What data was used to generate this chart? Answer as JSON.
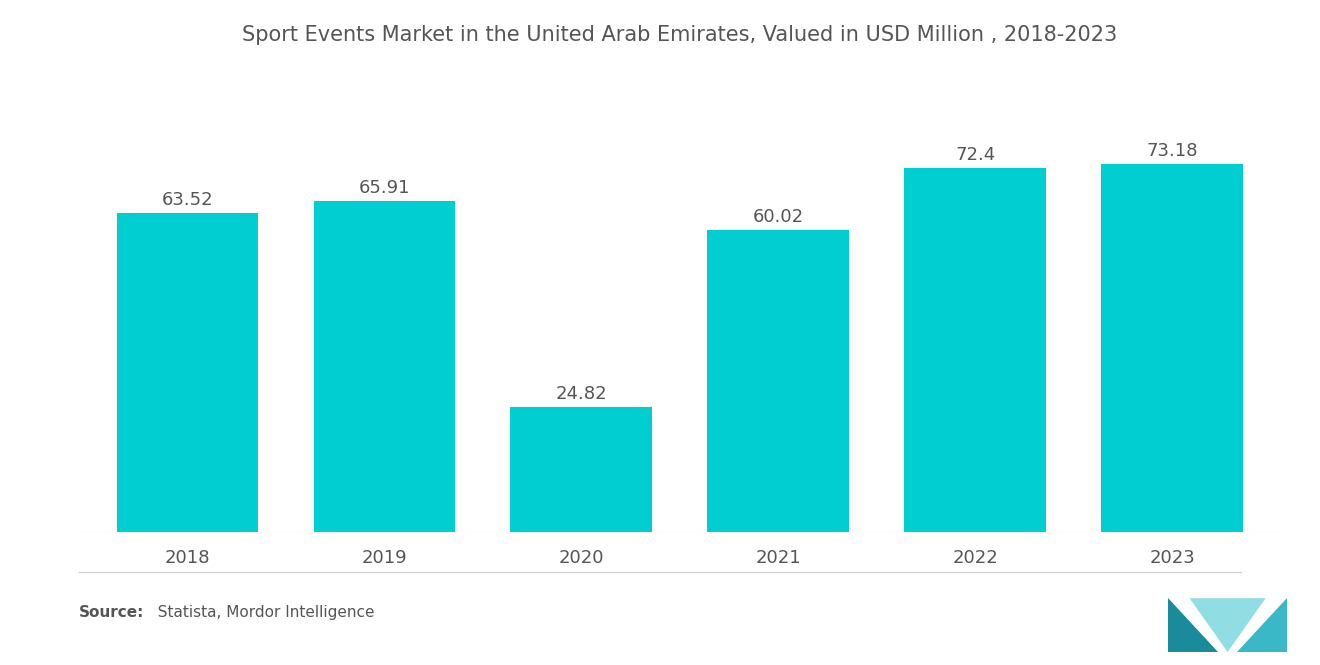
{
  "title": "Sport Events Market in the United Arab Emirates, Valued in USD Million , 2018-2023",
  "categories": [
    "2018",
    "2019",
    "2020",
    "2021",
    "2022",
    "2023"
  ],
  "values": [
    63.52,
    65.91,
    24.82,
    60.02,
    72.4,
    73.18
  ],
  "bar_color": "#00CED1",
  "background_color": "#ffffff",
  "title_color": "#555555",
  "label_color": "#555555",
  "tick_color": "#555555",
  "source_bold": "Source:",
  "source_normal": "  Statista, Mordor Intelligence",
  "title_fontsize": 15,
  "label_fontsize": 13,
  "tick_fontsize": 13,
  "source_fontsize": 11,
  "ylim": [
    0,
    90
  ],
  "bar_width": 0.72
}
